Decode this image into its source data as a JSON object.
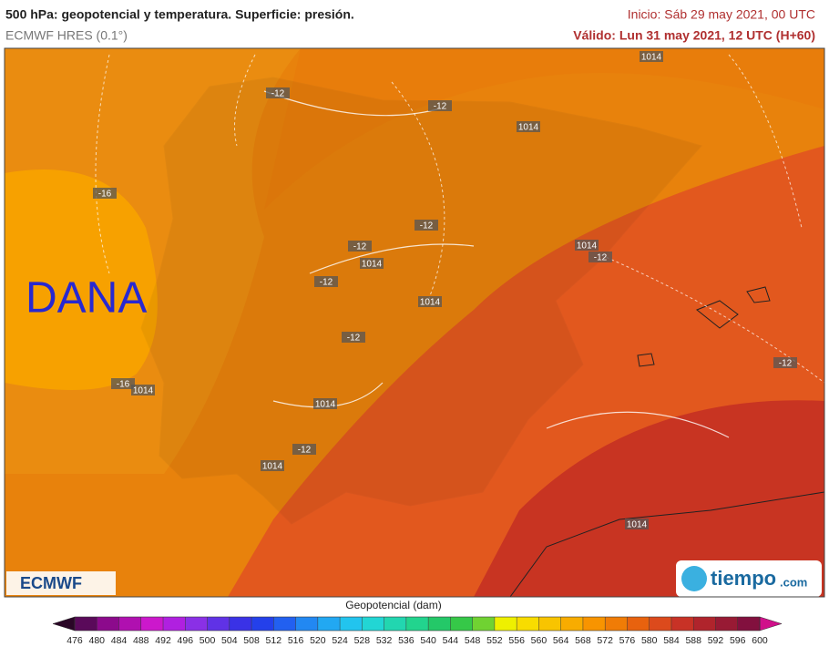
{
  "header": {
    "title": "500 hPa: geopotencial y temperatura. Superficie: presión.",
    "model": "ECMWF HRES (0.1°)",
    "init": "Inicio: Sáb 29 may 2021, 00 UTC",
    "valid": "Válido: Lun 31 may 2021, 12 UTC (H+60)"
  },
  "map": {
    "annotation": "DANA",
    "contour_labels": [
      "-12",
      "-12",
      "-12",
      "-12",
      "-12",
      "-12",
      "-12",
      "-12",
      "-12",
      "-16",
      "-16",
      "1014",
      "1014",
      "1014",
      "1014",
      "1014",
      "1014",
      "1014",
      "1014",
      "1014"
    ]
  },
  "logos": {
    "left": "ECMWF",
    "right_name": "tiempo",
    "right_suffix": ".com"
  },
  "colorbar": {
    "title": "Geopotencial (dam)",
    "ticks": [
      476,
      480,
      484,
      488,
      492,
      496,
      500,
      504,
      508,
      512,
      516,
      520,
      524,
      528,
      532,
      536,
      540,
      544,
      548,
      552,
      556,
      560,
      564,
      568,
      572,
      576,
      580,
      584,
      588,
      592,
      596,
      600
    ],
    "low_color": "#2a0626",
    "high_color": "#d0108a",
    "colors": [
      "#5a0a5a",
      "#8c0a8c",
      "#b010b0",
      "#cc18cc",
      "#b020e0",
      "#8a30e6",
      "#6032e6",
      "#3a32e6",
      "#2440ea",
      "#2260f0",
      "#2288f2",
      "#22a8f2",
      "#22c4ee",
      "#22d6d4",
      "#22d6b0",
      "#22d48e",
      "#24c868",
      "#36c848",
      "#70d232",
      "#eef000",
      "#f8dc00",
      "#f8c400",
      "#f8ac00",
      "#f89400",
      "#f07c06",
      "#e8620e",
      "#dc4a1c",
      "#c83226",
      "#b0242c",
      "#981a34",
      "#82103e"
    ]
  }
}
